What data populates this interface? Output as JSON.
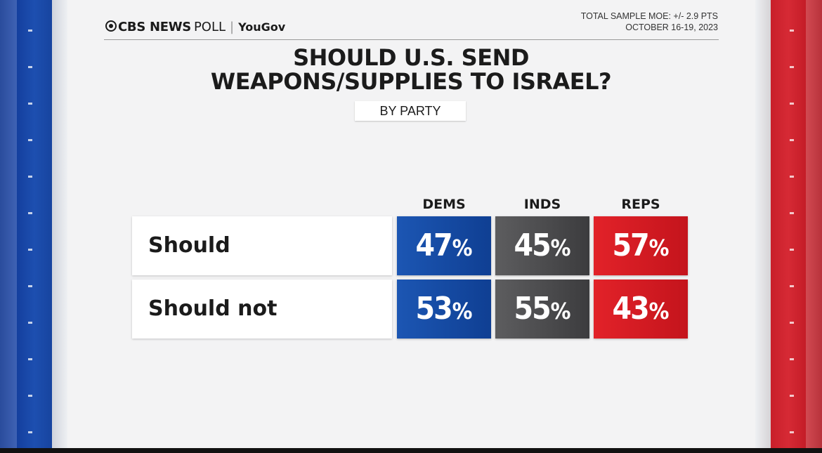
{
  "header": {
    "brand": "CBS NEWS",
    "brand_suffix": "POLL",
    "partner": "YouGov",
    "moe": "TOTAL SAMPLE MOE: +/- 2.9 PTS",
    "dates": "OCTOBER 16-19, 2023"
  },
  "title_line1": "SHOULD U.S. SEND",
  "title_line2": "WEAPONS/SUPPLIES TO ISRAEL?",
  "subtitle": "BY PARTY",
  "colors": {
    "dems": "#1a4fa8",
    "inds": "#4a4a4c",
    "reps": "#d81c24"
  },
  "chart_data": {
    "type": "table",
    "title": "SHOULD U.S. SEND WEAPONS/SUPPLIES TO ISRAEL?",
    "subtitle": "BY PARTY",
    "columns": [
      "DEMS",
      "INDS",
      "REPS"
    ],
    "rows": [
      {
        "label": "Should",
        "values": [
          47,
          45,
          57
        ]
      },
      {
        "label": "Should not",
        "values": [
          53,
          55,
          43
        ]
      }
    ],
    "unit": "%"
  }
}
